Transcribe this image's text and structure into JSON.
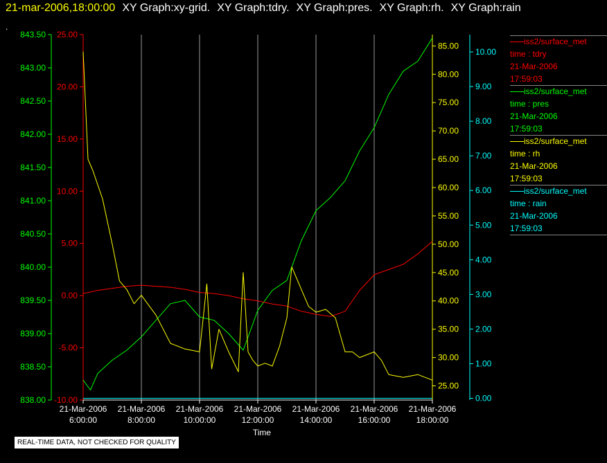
{
  "header": {
    "time": "21-mar-2006,18:00:00",
    "graphs": [
      "XY Graph:xy-grid.",
      "XY Graph:tdry.",
      "XY Graph:pres.",
      "XY Graph:rh.",
      "XY Graph:rain"
    ],
    "dot": "."
  },
  "legend": [
    {
      "title": "iss2/surface_met",
      "var": "time : tdry",
      "date": "21-Mar-2006",
      "time": "17:59:03",
      "color": "#ff0000"
    },
    {
      "title": "iss2/surface_met",
      "var": "time : pres",
      "date": "21-Mar-2006",
      "time": "17:59:03",
      "color": "#00ff00"
    },
    {
      "title": "iss2/surface_met",
      "var": "time : rh",
      "date": "21-Mar-2006",
      "time": "17:59:03",
      "color": "#ffff00"
    },
    {
      "title": "iss2/surface_met",
      "var": "time : rain",
      "date": "21-Mar-2006",
      "time": "17:59:03",
      "color": "#00ffff"
    }
  ],
  "footer": "REAL-TIME DATA, NOT CHECKED FOR QUALITY",
  "chart_data": {
    "type": "line",
    "xlabel": "Time",
    "xlim": [
      "06:00",
      "18:00"
    ],
    "x_ticks": [
      {
        "date": "21-Mar-2006",
        "time": "6:00:00"
      },
      {
        "date": "21-Mar-2006",
        "time": "8:00:00"
      },
      {
        "date": "21-Mar-2006",
        "time": "10:00:00"
      },
      {
        "date": "21-Mar-2006",
        "time": "12:00:00"
      },
      {
        "date": "21-Mar-2006",
        "time": "14:00:00"
      },
      {
        "date": "21-Mar-2006",
        "time": "16:00:00"
      },
      {
        "date": "21-Mar-2006",
        "time": "18:00:00"
      }
    ],
    "grid": "vertical",
    "axes": [
      {
        "id": "pres",
        "color": "#00ff00",
        "range": [
          838.0,
          843.5
        ],
        "ticks": [
          "838.00",
          "838.50",
          "839.00",
          "839.50",
          "840.00",
          "840.50",
          "841.00",
          "841.50",
          "842.00",
          "842.50",
          "843.00",
          "843.50"
        ]
      },
      {
        "id": "tdry",
        "color": "#ff0000",
        "range": [
          -10.0,
          25.0
        ],
        "ticks": [
          "-10.00",
          "-5.00",
          "0.00",
          "5.00",
          "10.00",
          "15.00",
          "20.00",
          "25.00"
        ]
      },
      {
        "id": "rh",
        "color": "#ffff00",
        "range": [
          22.5,
          87.0
        ],
        "ticks": [
          "25.00",
          "30.00",
          "35.00",
          "40.00",
          "45.00",
          "50.00",
          "55.00",
          "60.00",
          "65.00",
          "70.00",
          "75.00",
          "80.00",
          "85.00"
        ]
      },
      {
        "id": "rain",
        "color": "#00ffff",
        "range": [
          -0.05,
          10.5
        ],
        "ticks": [
          "0.00",
          "1.00",
          "2.00",
          "3.00",
          "4.00",
          "5.00",
          "6.00",
          "7.00",
          "8.00",
          "9.00",
          "10.00"
        ]
      }
    ],
    "series": [
      {
        "name": "time : tdry",
        "axis": "tdry",
        "color": "#ff0000",
        "x": [
          "06:00",
          "06:30",
          "07:00",
          "07:30",
          "08:00",
          "08:30",
          "09:00",
          "09:30",
          "10:00",
          "10:30",
          "11:00",
          "11:30",
          "12:00",
          "12:30",
          "13:00",
          "13:30",
          "14:00",
          "14:30",
          "15:00",
          "15:30",
          "16:00",
          "16:30",
          "17:00",
          "17:30",
          "18:00"
        ],
        "y": [
          0.2,
          0.5,
          0.7,
          0.9,
          1.0,
          0.9,
          0.8,
          0.6,
          0.3,
          0.2,
          0.0,
          -0.3,
          -0.5,
          -0.8,
          -1.0,
          -1.5,
          -1.8,
          -2.0,
          -1.5,
          0.5,
          2.0,
          2.5,
          3.0,
          4.0,
          5.2
        ]
      },
      {
        "name": "time : pres",
        "axis": "pres",
        "color": "#00ff00",
        "x": [
          "06:00",
          "06:15",
          "06:30",
          "07:00",
          "07:30",
          "08:00",
          "08:30",
          "09:00",
          "09:30",
          "10:00",
          "10:30",
          "11:00",
          "11:30",
          "12:00",
          "12:30",
          "13:00",
          "13:30",
          "14:00",
          "14:30",
          "15:00",
          "15:30",
          "16:00",
          "16:30",
          "17:00",
          "17:30",
          "18:00"
        ],
        "y": [
          838.3,
          838.15,
          838.4,
          838.6,
          838.75,
          838.95,
          839.2,
          839.45,
          839.5,
          839.25,
          839.2,
          839.0,
          838.75,
          839.35,
          839.65,
          839.8,
          840.4,
          840.85,
          841.05,
          841.3,
          841.75,
          842.1,
          842.6,
          842.95,
          843.1,
          843.45
        ]
      },
      {
        "name": "time : rh",
        "axis": "rh",
        "color": "#ffff00",
        "x": [
          "06:00",
          "06:10",
          "06:20",
          "06:40",
          "07:00",
          "07:15",
          "07:30",
          "07:45",
          "08:00",
          "08:30",
          "09:00",
          "09:30",
          "10:00",
          "10:15",
          "10:25",
          "10:40",
          "11:00",
          "11:20",
          "11:30",
          "11:40",
          "11:50",
          "12:00",
          "12:15",
          "12:30",
          "12:45",
          "13:00",
          "13:10",
          "13:20",
          "13:30",
          "13:45",
          "14:00",
          "14:20",
          "14:40",
          "15:00",
          "15:15",
          "15:30",
          "16:00",
          "16:15",
          "16:30",
          "17:00",
          "17:30",
          "18:00"
        ],
        "y": [
          84.0,
          65.0,
          63.0,
          58.0,
          50.0,
          43.5,
          42.0,
          39.5,
          41.0,
          37.5,
          32.5,
          31.5,
          31.0,
          43.0,
          28.0,
          35.0,
          31.0,
          27.5,
          45.0,
          31.0,
          29.5,
          28.5,
          29.0,
          28.5,
          32.0,
          37.0,
          46.0,
          44.0,
          42.0,
          39.0,
          38.0,
          38.5,
          37.0,
          31.0,
          31.0,
          30.0,
          31.0,
          29.5,
          27.0,
          26.5,
          27.0,
          26.0
        ]
      },
      {
        "name": "time : rain",
        "axis": "rain",
        "color": "#00ffff",
        "x": [
          "06:00",
          "18:00"
        ],
        "y": [
          0.0,
          0.0
        ]
      }
    ]
  }
}
